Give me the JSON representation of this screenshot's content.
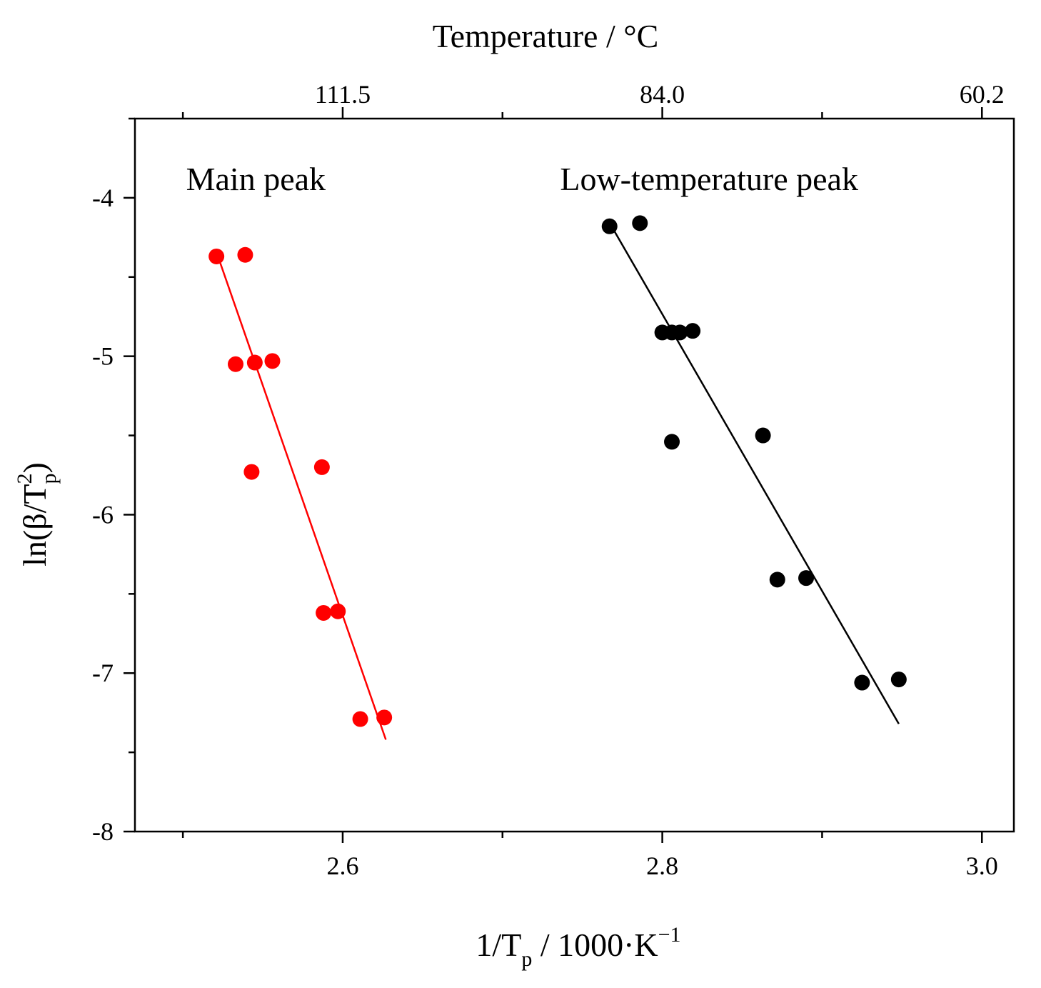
{
  "chart_data": {
    "type": "scatter",
    "title": "",
    "xlabel": {
      "base": "1/T",
      "sub": "p",
      "rest": " / 1000·K",
      "sup": "−1"
    },
    "ylabel": {
      "pre": "ln(β/T",
      "sup": "2",
      "sub": "p",
      "post": ")"
    },
    "top_axis_title": "Temperature / °C",
    "xlim": [
      2.47,
      3.02
    ],
    "ylim": [
      -8,
      -3.5
    ],
    "x_major_ticks": [
      2.6,
      2.8,
      3.0
    ],
    "x_tick_labels": [
      "2.6",
      "2.8",
      "3.0"
    ],
    "x_minor_ticks": [
      2.5,
      2.7,
      2.9
    ],
    "y_major_ticks": [
      -8,
      -7,
      -6,
      -5,
      -4
    ],
    "y_tick_labels": [
      "-8",
      "-7",
      "-6",
      "-5",
      "-4"
    ],
    "y_minor_ticks": [
      -7.5,
      -6.5,
      -5.5,
      -4.5,
      -3.5
    ],
    "top_ticks": [
      {
        "x": 2.6,
        "label": "111.5"
      },
      {
        "x": 2.8,
        "label": "84.0"
      },
      {
        "x": 3.0,
        "label": "60.2"
      }
    ],
    "top_minor_ticks": [
      2.5,
      2.7,
      2.9
    ],
    "grid": false,
    "legend": "none",
    "series": [
      {
        "name": "Main peak",
        "color": "#ff0000",
        "points": [
          [
            2.521,
            -4.37
          ],
          [
            2.539,
            -4.36
          ],
          [
            2.533,
            -5.05
          ],
          [
            2.545,
            -5.04
          ],
          [
            2.556,
            -5.03
          ],
          [
            2.543,
            -5.73
          ],
          [
            2.587,
            -5.7
          ],
          [
            2.588,
            -6.62
          ],
          [
            2.597,
            -6.61
          ],
          [
            2.611,
            -7.29
          ],
          [
            2.626,
            -7.28
          ]
        ],
        "fit": [
          [
            2.523,
            -4.4
          ],
          [
            2.627,
            -7.42
          ]
        ]
      },
      {
        "name": "Low-temperature peak",
        "color": "#000000",
        "points": [
          [
            2.767,
            -4.18
          ],
          [
            2.786,
            -4.16
          ],
          [
            2.8,
            -4.85
          ],
          [
            2.806,
            -4.85
          ],
          [
            2.811,
            -4.85
          ],
          [
            2.819,
            -4.84
          ],
          [
            2.806,
            -5.54
          ],
          [
            2.863,
            -5.5
          ],
          [
            2.872,
            -6.41
          ],
          [
            2.89,
            -6.4
          ],
          [
            2.925,
            -7.06
          ],
          [
            2.948,
            -7.04
          ]
        ],
        "fit": [
          [
            2.77,
            -4.21
          ],
          [
            2.948,
            -7.32
          ]
        ]
      }
    ],
    "annotations": [
      {
        "id": "main",
        "text": "Main peak",
        "x": 2.502,
        "y": -3.95
      },
      {
        "id": "low",
        "text": "Low-temperature peak",
        "x": 2.736,
        "y": -3.95
      }
    ]
  }
}
